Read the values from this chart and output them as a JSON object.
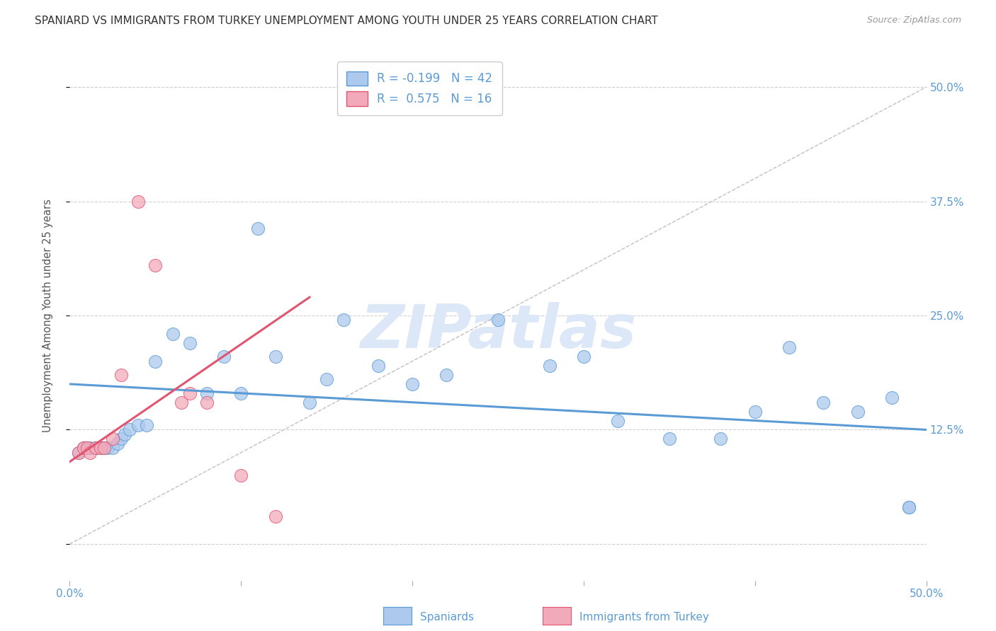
{
  "title": "SPANIARD VS IMMIGRANTS FROM TURKEY UNEMPLOYMENT AMONG YOUTH UNDER 25 YEARS CORRELATION CHART",
  "source": "Source: ZipAtlas.com",
  "ylabel": "Unemployment Among Youth under 25 years",
  "xlim": [
    0.0,
    0.5
  ],
  "ylim": [
    -0.04,
    0.54
  ],
  "yticks": [
    0.0,
    0.125,
    0.25,
    0.375,
    0.5
  ],
  "ytick_labels_right": [
    "",
    "12.5%",
    "25.0%",
    "37.5%",
    "50.0%"
  ],
  "xticks": [
    0.0,
    0.1,
    0.2,
    0.3,
    0.4,
    0.5
  ],
  "xtick_labels": [
    "0.0%",
    "",
    "",
    "",
    "",
    "50.0%"
  ],
  "watermark": "ZIPatlas",
  "legend_blue_r": "-0.199",
  "legend_blue_n": "42",
  "legend_pink_r": "0.575",
  "legend_pink_n": "16",
  "blue_scatter_x": [
    0.005,
    0.008,
    0.01,
    0.012,
    0.015,
    0.018,
    0.02,
    0.022,
    0.025,
    0.028,
    0.03,
    0.032,
    0.035,
    0.04,
    0.045,
    0.05,
    0.06,
    0.07,
    0.08,
    0.09,
    0.1,
    0.11,
    0.12,
    0.14,
    0.15,
    0.16,
    0.18,
    0.2,
    0.22,
    0.25,
    0.28,
    0.3,
    0.32,
    0.35,
    0.38,
    0.4,
    0.42,
    0.44,
    0.46,
    0.48,
    0.49,
    0.49
  ],
  "blue_scatter_y": [
    0.1,
    0.105,
    0.105,
    0.105,
    0.105,
    0.105,
    0.105,
    0.105,
    0.105,
    0.11,
    0.115,
    0.12,
    0.125,
    0.13,
    0.13,
    0.2,
    0.23,
    0.22,
    0.165,
    0.205,
    0.165,
    0.345,
    0.205,
    0.155,
    0.18,
    0.245,
    0.195,
    0.175,
    0.185,
    0.245,
    0.195,
    0.205,
    0.135,
    0.115,
    0.115,
    0.145,
    0.215,
    0.155,
    0.145,
    0.16,
    0.04,
    0.04
  ],
  "pink_scatter_x": [
    0.005,
    0.008,
    0.01,
    0.012,
    0.015,
    0.018,
    0.02,
    0.025,
    0.03,
    0.04,
    0.05,
    0.065,
    0.07,
    0.08,
    0.1,
    0.12
  ],
  "pink_scatter_y": [
    0.1,
    0.105,
    0.105,
    0.1,
    0.105,
    0.105,
    0.105,
    0.115,
    0.185,
    0.375,
    0.305,
    0.155,
    0.165,
    0.155,
    0.075,
    0.03
  ],
  "blue_line_color": "#5b9bd5",
  "pink_line_color": "#e05570",
  "blue_scatter_color": "#adc9ed",
  "pink_scatter_color": "#f2aaba",
  "axis_label_color": "#5b9bd5",
  "grid_color": "#d0d0d0",
  "background_color": "#ffffff",
  "title_fontsize": 11,
  "source_fontsize": 9,
  "watermark_color": "#dce8f8",
  "watermark_fontsize": 62,
  "blue_trend_x0": 0.0,
  "blue_trend_x1": 0.5,
  "blue_trend_y0": 0.175,
  "blue_trend_y1": 0.125,
  "pink_trend_x0": 0.0,
  "pink_trend_x1": 0.14,
  "pink_trend_y0": 0.09,
  "pink_trend_y1": 0.27
}
